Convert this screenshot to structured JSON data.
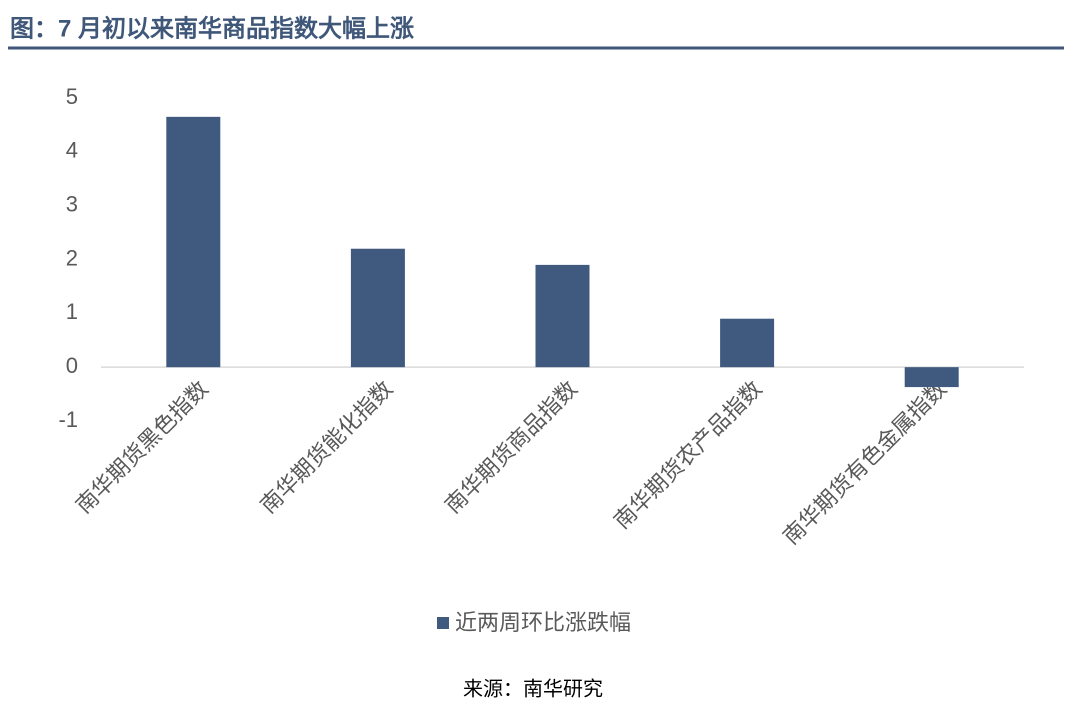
{
  "chart_data": {
    "type": "bar",
    "title": "图：7 月初以来南华商品指数大幅上涨",
    "categories": [
      "南华期货黑色指数",
      "南华期货能化指数",
      "南华期货商品指数",
      "南华期货农产品指数",
      "南华期货有色金属指数"
    ],
    "series": [
      {
        "name": "近两周环比涨跌幅",
        "color": "#3f5a7e",
        "values": [
          4.65,
          2.2,
          1.9,
          0.9,
          -0.37
        ]
      }
    ],
    "ylim": [
      -1,
      5
    ],
    "yticks": [
      -1,
      0,
      1,
      2,
      3,
      4,
      5
    ],
    "grid": false,
    "legend": "bottom",
    "source": "来源：南华研究"
  }
}
